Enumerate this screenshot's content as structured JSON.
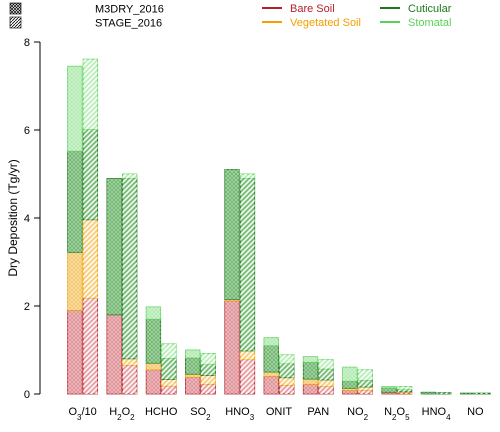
{
  "chart_data": {
    "type": "bar",
    "stacked": true,
    "grouped": true,
    "ylabel": "Dry Deposition (Tg/yr)",
    "ylim": [
      0,
      8
    ],
    "yticks": [
      "0",
      "2",
      "4",
      "6",
      "8"
    ],
    "categories": [
      {
        "base": "O",
        "sub": "3",
        "rest": "/10"
      },
      {
        "base": "H",
        "sub": "2",
        "rest": "O",
        "sub2": "2"
      },
      {
        "base": "HCHO"
      },
      {
        "base": "SO",
        "sub": "2"
      },
      {
        "base": "HNO",
        "sub": "3"
      },
      {
        "base": "ONIT"
      },
      {
        "base": "PAN"
      },
      {
        "base": "NO",
        "sub": "2"
      },
      {
        "base": "N",
        "sub": "2",
        "rest": "O",
        "sub2": "5"
      },
      {
        "base": "HNO",
        "sub": "4"
      },
      {
        "base": "NO"
      }
    ],
    "models": [
      {
        "name": "M3DRY_2016",
        "pattern": "crosshatch"
      },
      {
        "name": "STAGE_2016",
        "pattern": "diagonal"
      }
    ],
    "components": [
      {
        "name": "Bare Soil",
        "color": "#b5212b",
        "fill": "#e6a3a8"
      },
      {
        "name": "Vegetated Soil",
        "color": "#f2a000",
        "fill": "#f7cf80"
      },
      {
        "name": "Cuticular",
        "color": "#1a7a1a",
        "fill": "#7bbf7b"
      },
      {
        "name": "Stomatal",
        "color": "#5ad15a",
        "fill": "#bfeebf"
      }
    ],
    "series": {
      "M3DRY_2016": [
        [
          1.9,
          1.32,
          2.3,
          1.93
        ],
        [
          1.8,
          0.0,
          3.1,
          0.0
        ],
        [
          0.55,
          0.15,
          1.0,
          0.28
        ],
        [
          0.38,
          0.07,
          0.37,
          0.18
        ],
        [
          2.12,
          0.03,
          2.95,
          0.0
        ],
        [
          0.4,
          0.1,
          0.6,
          0.18
        ],
        [
          0.22,
          0.12,
          0.38,
          0.13
        ],
        [
          0.08,
          0.05,
          0.16,
          0.32
        ],
        [
          0.04,
          0.0,
          0.1,
          0.03
        ],
        [
          0.0,
          0.0,
          0.04,
          0.0
        ],
        [
          0.0,
          0.0,
          0.02,
          0.0
        ]
      ],
      "STAGE_2016": [
        [
          2.18,
          1.78,
          2.05,
          1.6
        ],
        [
          0.65,
          0.15,
          4.1,
          0.1
        ],
        [
          0.18,
          0.15,
          0.48,
          0.33
        ],
        [
          0.22,
          0.2,
          0.25,
          0.25
        ],
        [
          0.78,
          0.2,
          3.92,
          0.1
        ],
        [
          0.2,
          0.17,
          0.32,
          0.2
        ],
        [
          0.17,
          0.15,
          0.25,
          0.21
        ],
        [
          0.08,
          0.08,
          0.15,
          0.24
        ],
        [
          0.03,
          0.02,
          0.05,
          0.07
        ],
        [
          0.0,
          0.0,
          0.03,
          0.0
        ],
        [
          0.0,
          0.0,
          0.02,
          0.0
        ]
      ]
    },
    "legend_placement": "top"
  }
}
